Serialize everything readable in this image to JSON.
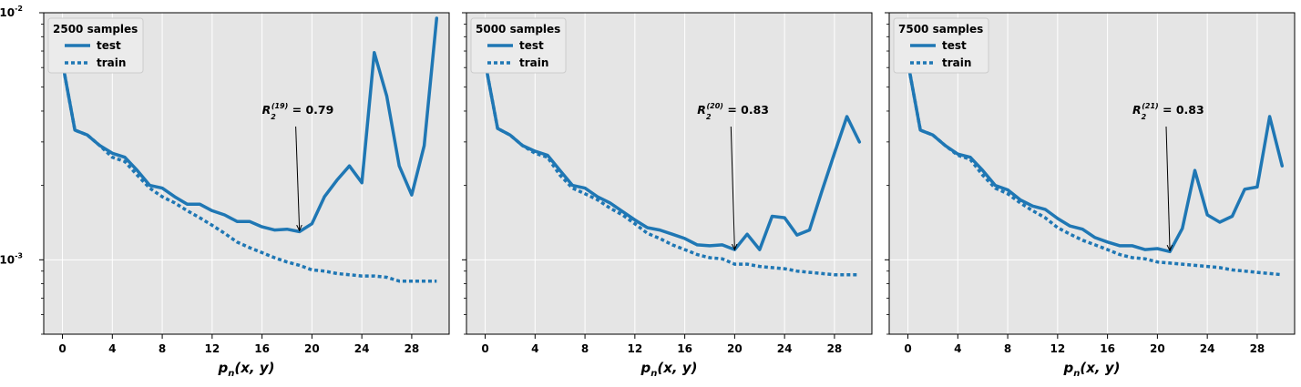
{
  "chart_data": [
    {
      "type": "line",
      "legend_title": "2500 samples",
      "legend_placement": "top-left",
      "xlabel": "p_n(x, y)",
      "x_ticks": [
        0,
        4,
        8,
        12,
        16,
        20,
        24,
        28
      ],
      "xlim": [
        -1.5,
        31
      ],
      "ylim": [
        0.0005,
        0.01
      ],
      "yscale": "log",
      "y_major_ticks": [
        {
          "value": 0.001,
          "label": "10^-3"
        },
        {
          "value": 0.01,
          "label": "10^-2"
        }
      ],
      "grid": true,
      "background": "#e5e5e5",
      "series": [
        {
          "name": "test",
          "style": "solid",
          "color": "#1f77b4",
          "x": [
            0,
            1,
            2,
            3,
            4,
            5,
            6,
            7,
            8,
            9,
            10,
            11,
            12,
            13,
            14,
            15,
            16,
            17,
            18,
            19,
            20,
            21,
            22,
            23,
            24,
            25,
            26,
            27,
            28,
            29,
            30
          ],
          "values": [
            0.0063,
            0.00335,
            0.0032,
            0.0029,
            0.0027,
            0.0026,
            0.0023,
            0.002,
            0.00195,
            0.0018,
            0.00168,
            0.00168,
            0.00158,
            0.00152,
            0.00143,
            0.00143,
            0.00136,
            0.00132,
            0.00133,
            0.0013,
            0.0014,
            0.0018,
            0.0021,
            0.0024,
            0.00205,
            0.0069,
            0.0046,
            0.0024,
            0.00183,
            0.0029,
            0.0095
          ]
        },
        {
          "name": "train",
          "style": "dotted",
          "color": "#1f77b4",
          "x": [
            0,
            1,
            2,
            3,
            4,
            5,
            6,
            7,
            8,
            9,
            10,
            11,
            12,
            13,
            14,
            15,
            16,
            17,
            18,
            19,
            20,
            21,
            22,
            23,
            24,
            25,
            26,
            27,
            28,
            29,
            30
          ],
          "values": [
            0.0063,
            0.00335,
            0.0032,
            0.0029,
            0.0026,
            0.0025,
            0.0022,
            0.00195,
            0.0018,
            0.0017,
            0.00158,
            0.00148,
            0.00138,
            0.00128,
            0.00118,
            0.00112,
            0.00107,
            0.00102,
            0.00098,
            0.00095,
            0.00091,
            0.0009,
            0.00088,
            0.00087,
            0.00086,
            0.00086,
            0.00085,
            0.00082,
            0.00082,
            0.00082,
            0.00082
          ]
        }
      ],
      "annotation": {
        "sup": "(19)",
        "value": "0.79",
        "x": 19,
        "y": 0.00129,
        "text_x": 16,
        "text_y": 0.0039
      }
    },
    {
      "type": "line",
      "legend_title": "5000 samples",
      "legend_placement": "top-left",
      "xlabel": "p_n(x, y)",
      "x_ticks": [
        0,
        4,
        8,
        12,
        16,
        20,
        24,
        28
      ],
      "xlim": [
        -1.5,
        31
      ],
      "ylim": [
        0.0005,
        0.01
      ],
      "yscale": "log",
      "y_major_ticks": [
        {
          "value": 0.001,
          "label": ""
        },
        {
          "value": 0.01,
          "label": ""
        }
      ],
      "grid": true,
      "background": "#e5e5e5",
      "series": [
        {
          "name": "test",
          "style": "solid",
          "color": "#1f77b4",
          "x": [
            0,
            1,
            2,
            3,
            4,
            5,
            6,
            7,
            8,
            9,
            10,
            11,
            12,
            13,
            14,
            15,
            16,
            17,
            18,
            19,
            20,
            21,
            22,
            23,
            24,
            25,
            26,
            27,
            28,
            29,
            30
          ],
          "values": [
            0.0063,
            0.0034,
            0.0032,
            0.0029,
            0.00275,
            0.00265,
            0.0023,
            0.002,
            0.00195,
            0.0018,
            0.0017,
            0.00157,
            0.00145,
            0.00135,
            0.00132,
            0.00127,
            0.00122,
            0.00115,
            0.00114,
            0.00115,
            0.0011,
            0.00127,
            0.0011,
            0.0015,
            0.00148,
            0.00126,
            0.00132,
            0.0019,
            0.0027,
            0.0038,
            0.003
          ]
        },
        {
          "name": "train",
          "style": "dotted",
          "color": "#1f77b4",
          "x": [
            0,
            1,
            2,
            3,
            4,
            5,
            6,
            7,
            8,
            9,
            10,
            11,
            12,
            13,
            14,
            15,
            16,
            17,
            18,
            19,
            20,
            21,
            22,
            23,
            24,
            25,
            26,
            27,
            28,
            29,
            30
          ],
          "values": [
            0.0063,
            0.0034,
            0.0032,
            0.0029,
            0.0027,
            0.0026,
            0.0022,
            0.00195,
            0.00185,
            0.00175,
            0.00162,
            0.00152,
            0.0014,
            0.00128,
            0.00122,
            0.00115,
            0.0011,
            0.00105,
            0.00102,
            0.00101,
            0.00096,
            0.00096,
            0.00094,
            0.00093,
            0.00092,
            0.0009,
            0.00089,
            0.00088,
            0.00087,
            0.00087,
            0.00087
          ]
        }
      ],
      "annotation": {
        "sup": "(20)",
        "value": "0.83",
        "x": 20,
        "y": 0.00108,
        "text_x": 17,
        "text_y": 0.0039
      }
    },
    {
      "type": "line",
      "legend_title": "7500 samples",
      "legend_placement": "top-left",
      "xlabel": "p_n(x, y)",
      "x_ticks": [
        0,
        4,
        8,
        12,
        16,
        20,
        24,
        28
      ],
      "xlim": [
        -1.5,
        31
      ],
      "ylim": [
        0.0005,
        0.01
      ],
      "yscale": "log",
      "y_major_ticks": [
        {
          "value": 0.001,
          "label": ""
        },
        {
          "value": 0.01,
          "label": ""
        }
      ],
      "grid": true,
      "background": "#e5e5e5",
      "series": [
        {
          "name": "test",
          "style": "solid",
          "color": "#1f77b4",
          "x": [
            0,
            1,
            2,
            3,
            4,
            5,
            6,
            7,
            8,
            9,
            10,
            11,
            12,
            13,
            14,
            15,
            16,
            17,
            18,
            19,
            20,
            21,
            22,
            23,
            24,
            25,
            26,
            27,
            28,
            29,
            30
          ],
          "values": [
            0.0063,
            0.00335,
            0.0032,
            0.0029,
            0.00268,
            0.0026,
            0.0023,
            0.002,
            0.00192,
            0.00175,
            0.00165,
            0.0016,
            0.00147,
            0.00137,
            0.00133,
            0.00123,
            0.00118,
            0.00114,
            0.00114,
            0.0011,
            0.00111,
            0.00108,
            0.00134,
            0.0023,
            0.00152,
            0.00142,
            0.0015,
            0.00193,
            0.00197,
            0.0038,
            0.0024
          ]
        },
        {
          "name": "train",
          "style": "dotted",
          "color": "#1f77b4",
          "x": [
            0,
            1,
            2,
            3,
            4,
            5,
            6,
            7,
            8,
            9,
            10,
            11,
            12,
            13,
            14,
            15,
            16,
            17,
            18,
            19,
            20,
            21,
            22,
            23,
            24,
            25,
            26,
            27,
            28,
            29,
            30
          ],
          "values": [
            0.0063,
            0.00335,
            0.0032,
            0.0029,
            0.00265,
            0.00255,
            0.0022,
            0.00195,
            0.00185,
            0.0017,
            0.00158,
            0.00148,
            0.00135,
            0.00127,
            0.0012,
            0.00115,
            0.0011,
            0.00105,
            0.00102,
            0.00101,
            0.00098,
            0.00097,
            0.00096,
            0.00095,
            0.00094,
            0.00093,
            0.00091,
            0.0009,
            0.00089,
            0.00088,
            0.00087
          ]
        }
      ],
      "annotation": {
        "sup": "(21)",
        "value": "0.83",
        "x": 21,
        "y": 0.00107,
        "text_x": 18,
        "text_y": 0.0039
      }
    }
  ]
}
